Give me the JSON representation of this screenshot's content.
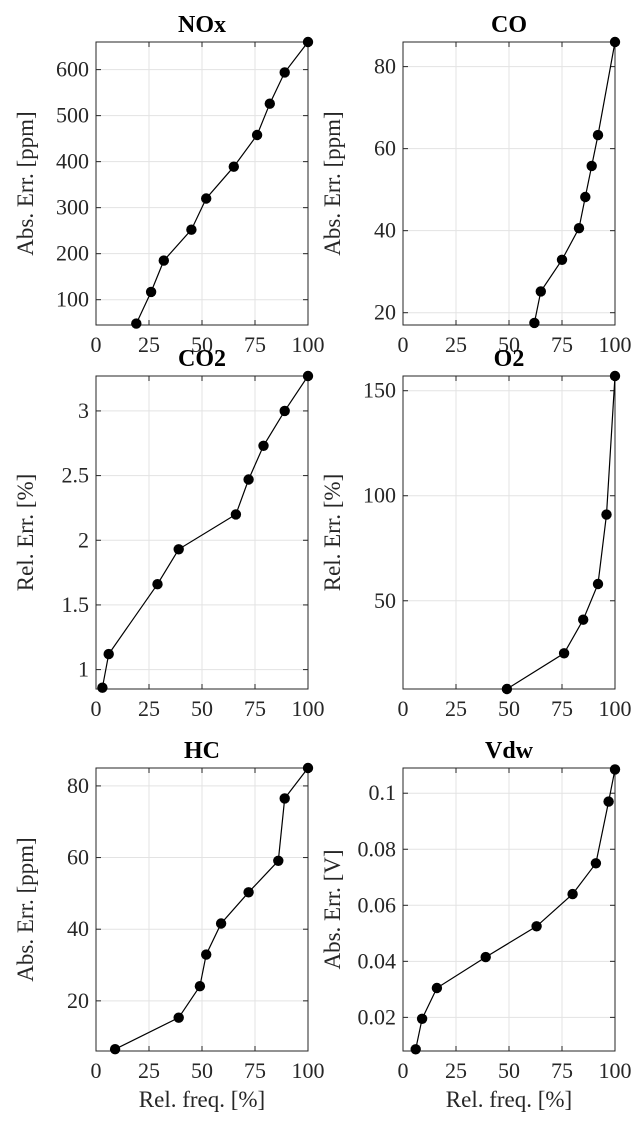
{
  "chart_data": [
    {
      "type": "line",
      "title": "NOx",
      "xlabel": "",
      "ylabel": "Abs. Err. [ppm]",
      "xlim": [
        0,
        100
      ],
      "ylim": [
        45,
        660
      ],
      "xticks": [
        0,
        25,
        50,
        75,
        100
      ],
      "yticks": [
        100,
        200,
        300,
        400,
        500,
        600
      ],
      "yticklabels": [
        "100",
        "200",
        "300",
        "400",
        "500",
        "600"
      ],
      "grid": true,
      "series": [
        {
          "x": [
            19,
            26,
            32,
            45,
            52,
            65,
            76,
            82,
            89,
            100
          ],
          "y": [
            48,
            117,
            185,
            252,
            320,
            389,
            458,
            526,
            594,
            660
          ]
        }
      ]
    },
    {
      "type": "line",
      "title": "CO",
      "xlabel": "",
      "ylabel": "Abs. Err. [ppm]",
      "xlim": [
        0,
        100
      ],
      "ylim": [
        17,
        86
      ],
      "xticks": [
        0,
        25,
        50,
        75,
        100
      ],
      "yticks": [
        20,
        40,
        60,
        80
      ],
      "yticklabels": [
        "20",
        "40",
        "60",
        "80"
      ],
      "grid": true,
      "series": [
        {
          "x": [
            62,
            65,
            75,
            83,
            86,
            89,
            92,
            100
          ],
          "y": [
            17.5,
            25.2,
            32.9,
            40.6,
            48.2,
            55.8,
            63.3,
            86
          ]
        }
      ]
    },
    {
      "type": "line",
      "title": "CO2",
      "xlabel": "",
      "ylabel": "Rel. Err. [%]",
      "xlim": [
        0,
        100
      ],
      "ylim": [
        0.85,
        3.27
      ],
      "xticks": [
        0,
        25,
        50,
        75,
        100
      ],
      "yticks": [
        1,
        1.5,
        2,
        2.5,
        3
      ],
      "yticklabels": [
        "1",
        "1.5",
        "2",
        "2.5",
        "3"
      ],
      "grid": true,
      "series": [
        {
          "x": [
            3,
            6,
            29,
            39,
            66,
            72,
            79,
            89,
            100
          ],
          "y": [
            0.86,
            1.12,
            1.66,
            1.93,
            2.2,
            2.47,
            2.73,
            3.0,
            3.27
          ]
        }
      ]
    },
    {
      "type": "line",
      "title": "O2",
      "xlabel": "",
      "ylabel": "Rel. Err. [%]",
      "xlim": [
        0,
        100
      ],
      "ylim": [
        8,
        157
      ],
      "xticks": [
        0,
        25,
        50,
        75,
        100
      ],
      "yticks": [
        50,
        100,
        150
      ],
      "yticklabels": [
        "50",
        "100",
        "150"
      ],
      "grid": true,
      "series": [
        {
          "x": [
            49,
            76,
            85,
            92,
            96,
            100
          ],
          "y": [
            8,
            25,
            41,
            58,
            91,
            157
          ]
        }
      ]
    },
    {
      "type": "line",
      "title": "HC",
      "xlabel": "Rel. freq. [%]",
      "ylabel": "Abs. Err. [ppm]",
      "xlim": [
        0,
        100
      ],
      "ylim": [
        6,
        85
      ],
      "xticks": [
        0,
        25,
        50,
        75,
        100
      ],
      "yticks": [
        20,
        40,
        60,
        80
      ],
      "yticklabels": [
        "20",
        "40",
        "60",
        "80"
      ],
      "grid": true,
      "series": [
        {
          "x": [
            9,
            39,
            49,
            52,
            59,
            72,
            86,
            89,
            100
          ],
          "y": [
            6.5,
            15.3,
            24.1,
            32.9,
            41.6,
            50.3,
            59.1,
            76.5,
            85
          ]
        }
      ]
    },
    {
      "type": "line",
      "title": "Vdw",
      "xlabel": "Rel. freq. [%]",
      "ylabel": "Abs. Err. [V]",
      "xlim": [
        0,
        100
      ],
      "ylim": [
        0.008,
        0.109
      ],
      "xticks": [
        0,
        25,
        50,
        75,
        100
      ],
      "yticks": [
        0.02,
        0.04,
        0.06,
        0.08,
        0.1
      ],
      "yticklabels": [
        "0.02",
        "0.04",
        "0.06",
        "0.08",
        "0.1"
      ],
      "grid": true,
      "series": [
        {
          "x": [
            6,
            9,
            16,
            39,
            63,
            80,
            91,
            97,
            100
          ],
          "y": [
            0.0086,
            0.0195,
            0.0305,
            0.0415,
            0.0525,
            0.064,
            0.075,
            0.097,
            0.1085
          ]
        }
      ]
    }
  ]
}
